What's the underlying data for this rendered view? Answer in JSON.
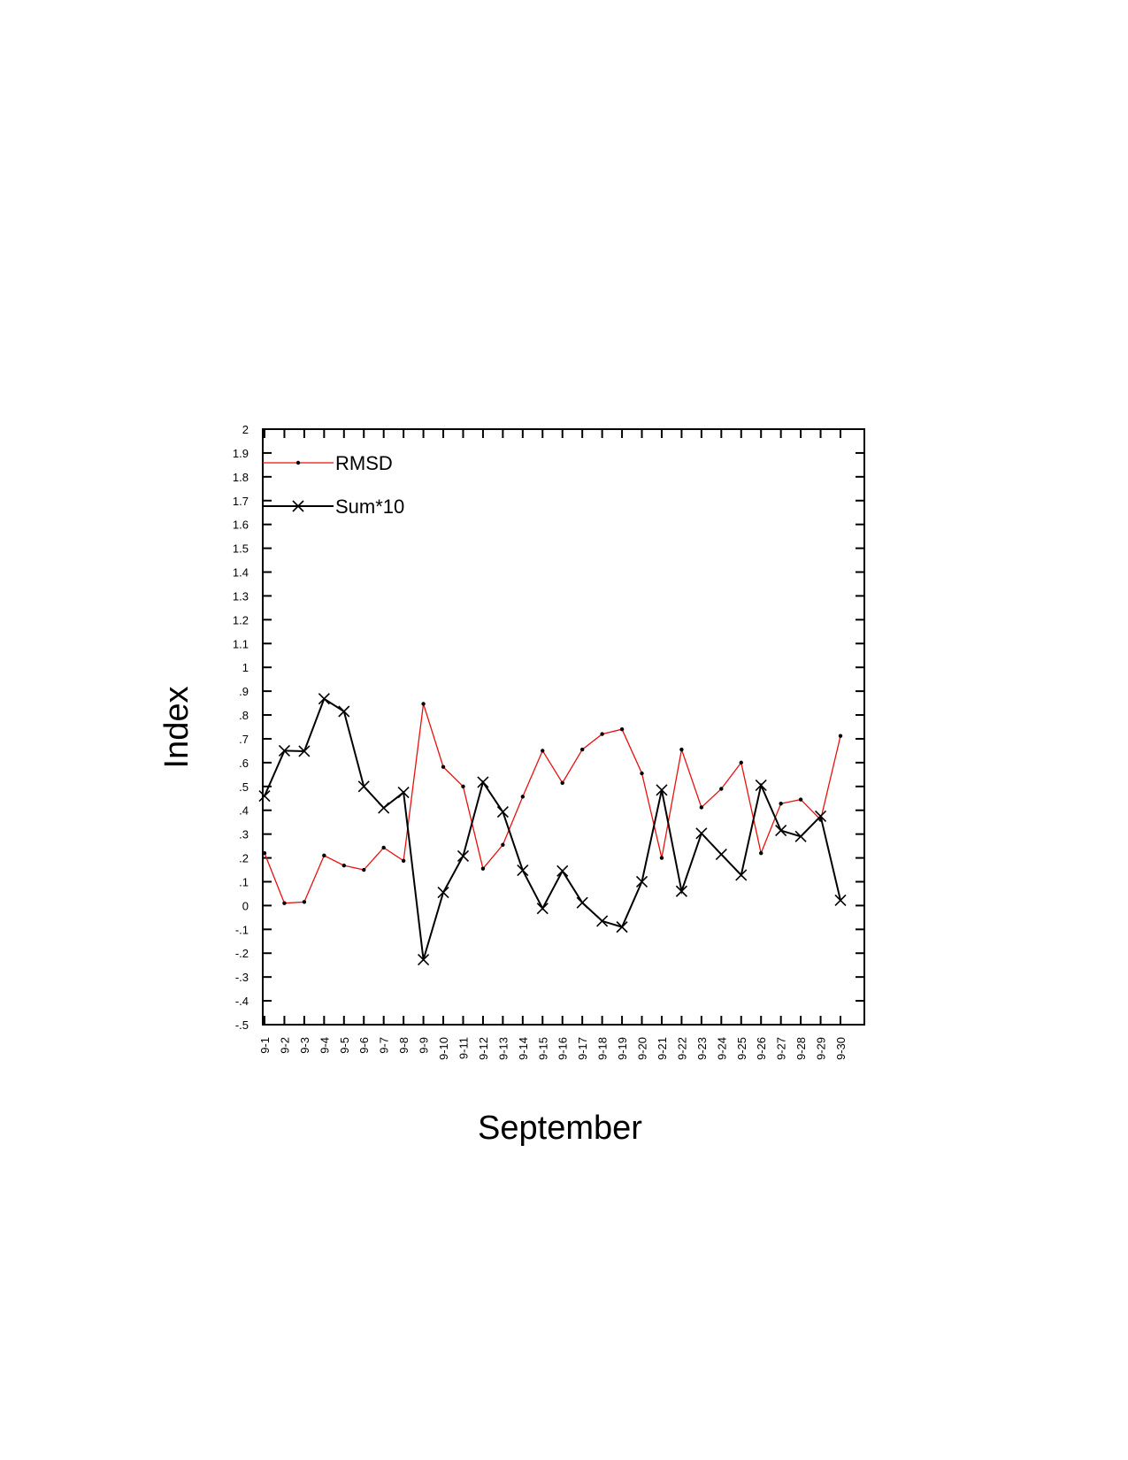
{
  "chart_data": {
    "type": "line",
    "xlabel": "September",
    "ylabel": "Index",
    "ylim": [
      -0.5,
      2
    ],
    "y_ticks": [
      "-.5",
      "-.4",
      "-.3",
      "-.2",
      "-.1",
      "0",
      ".1",
      ".2",
      ".3",
      ".4",
      ".5",
      ".6",
      ".7",
      ".8",
      ".9",
      "1",
      "1.1",
      "1.2",
      "1.3",
      "1.4",
      "1.5",
      "1.6",
      "1.7",
      "1.8",
      "1.9",
      "2"
    ],
    "categories": [
      "9-1",
      "9-2",
      "9-3",
      "9-4",
      "9-5",
      "9-6",
      "9-7",
      "9-8",
      "9-9",
      "9-10",
      "9-11",
      "9-12",
      "9-13",
      "9-14",
      "9-15",
      "9-16",
      "9-17",
      "9-18",
      "9-19",
      "9-20",
      "9-21",
      "9-22",
      "9-23",
      "9-24",
      "9-25",
      "9-26",
      "9-27",
      "9-28",
      "9-29",
      "9-30"
    ],
    "legend_position": "top-left",
    "grid": false,
    "series": [
      {
        "name": "RMSD",
        "color": "#e8110f",
        "marker": "dot",
        "values": [
          0.22,
          0.01,
          0.015,
          0.21,
          0.168,
          0.15,
          0.243,
          0.188,
          0.847,
          0.582,
          0.5,
          0.155,
          0.255,
          0.457,
          0.65,
          0.515,
          0.655,
          0.72,
          0.74,
          0.555,
          0.2,
          0.655,
          0.412,
          0.49,
          0.6,
          0.22,
          0.428,
          0.445,
          0.36,
          0.712
        ]
      },
      {
        "name": "Sum*10",
        "color": "#000000",
        "marker": "x",
        "values": [
          0.46,
          0.65,
          0.648,
          0.868,
          0.815,
          0.5,
          0.41,
          0.475,
          -0.227,
          0.055,
          0.208,
          0.518,
          0.393,
          0.148,
          -0.012,
          0.145,
          0.012,
          -0.065,
          -0.09,
          0.1,
          0.485,
          0.06,
          0.303,
          0.215,
          0.128,
          0.505,
          0.315,
          0.29,
          0.375,
          0.022
        ]
      }
    ]
  }
}
